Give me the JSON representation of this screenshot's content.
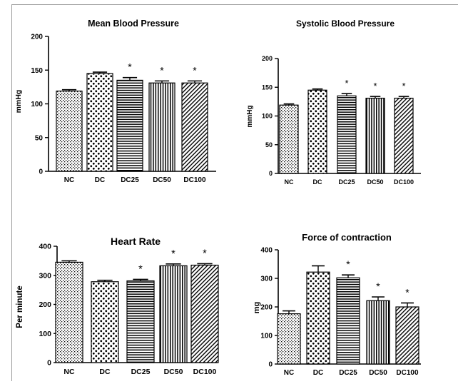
{
  "chart_data": [
    {
      "type": "bar",
      "title": "Mean Blood Pressure",
      "ylabel": "mmHg",
      "categories": [
        "NC",
        "DC",
        "DC25",
        "DC50",
        "DC100"
      ],
      "values": [
        119,
        145,
        135,
        131,
        131
      ],
      "errors": [
        2,
        2,
        4,
        3,
        3
      ],
      "significance": [
        "",
        "",
        "*",
        "*",
        "*"
      ],
      "ylim": [
        0,
        200
      ],
      "yticks": [
        "0",
        "50",
        "100",
        "150",
        "200"
      ]
    },
    {
      "type": "bar",
      "title": "Systolic Blood Pressure",
      "ylabel": "mmHg",
      "categories": [
        "NC",
        "DC",
        "DC25",
        "DC50",
        "DC100"
      ],
      "values": [
        119,
        145,
        135,
        131,
        131
      ],
      "errors": [
        2,
        2,
        4,
        3,
        3
      ],
      "significance": [
        "",
        "",
        "*",
        "*",
        "*"
      ],
      "ylim": [
        0,
        200
      ],
      "yticks": [
        "0",
        "50",
        "100",
        "150",
        "200"
      ]
    },
    {
      "type": "bar",
      "title": "Heart Rate",
      "ylabel": "Per minute",
      "categories": [
        "NC",
        "DC",
        "DC25",
        "DC50",
        "DC100"
      ],
      "values": [
        345,
        278,
        281,
        333,
        335
      ],
      "errors": [
        5,
        5,
        5,
        6,
        5
      ],
      "significance": [
        "",
        "",
        "*",
        "*",
        "*"
      ],
      "ylim": [
        0,
        400
      ],
      "yticks": [
        "0",
        "100",
        "200",
        "300",
        "400"
      ]
    },
    {
      "type": "bar",
      "title": "Force of contraction",
      "ylabel": "mg",
      "categories": [
        "NC",
        "DC",
        "DC25",
        "DC50",
        "DC100"
      ],
      "values": [
        176,
        322,
        302,
        222,
        200
      ],
      "errors": [
        10,
        22,
        10,
        13,
        14
      ],
      "significance": [
        "",
        "",
        "*",
        "*",
        "*"
      ],
      "ylim": [
        0,
        400
      ],
      "yticks": [
        "0",
        "100",
        "200",
        "300",
        "400"
      ]
    }
  ],
  "colors": {
    "bar_fill": "#ffffff",
    "bar_stroke": "#000000",
    "pattern": "#000000",
    "frame": "#9a9a9a"
  }
}
